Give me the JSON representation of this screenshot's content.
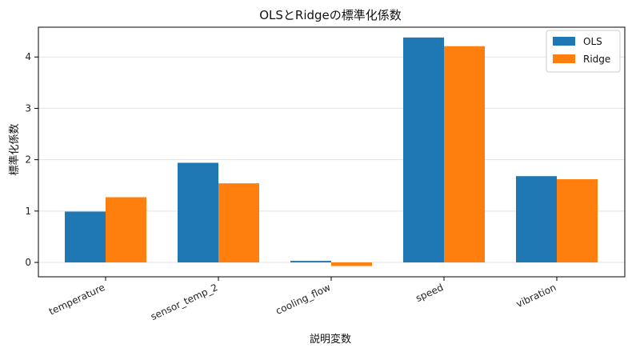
{
  "chart_data": {
    "type": "bar",
    "title": "OLSとRidgeの標準化係数",
    "xlabel": "説明変数",
    "ylabel": "標準化係数",
    "categories": [
      "temperature",
      "sensor_temp_2",
      "cooling_flow",
      "speed",
      "vibration"
    ],
    "series": [
      {
        "name": "OLS",
        "color": "#1f77b4",
        "values": [
          0.99,
          1.94,
          0.03,
          4.38,
          1.68
        ]
      },
      {
        "name": "Ridge",
        "color": "#ff7f0e",
        "values": [
          1.27,
          1.54,
          -0.07,
          4.21,
          1.62
        ]
      }
    ],
    "ylim": [
      -0.28,
      4.58
    ],
    "yticks": [
      0,
      1,
      2,
      3,
      4
    ],
    "grid": "y",
    "legend": "top-right"
  }
}
